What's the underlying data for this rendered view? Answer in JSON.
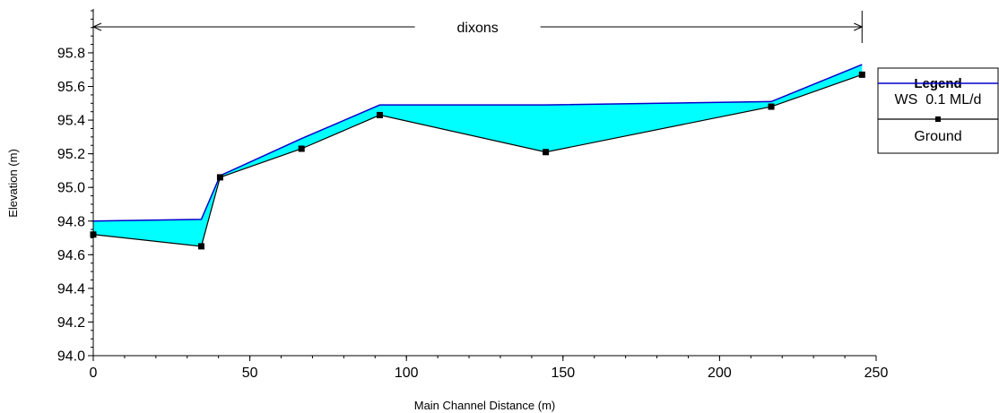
{
  "chart_data": {
    "type": "area",
    "title": "",
    "xlabel": "Main Channel Distance (m)",
    "ylabel": "Elevation (m)",
    "xlim": [
      0,
      250
    ],
    "ylim": [
      94.0,
      96.05
    ],
    "x_ticks": [
      0,
      50,
      100,
      150,
      200,
      250
    ],
    "y_ticks": [
      94.0,
      94.2,
      94.4,
      94.6,
      94.8,
      95.0,
      95.2,
      95.4,
      95.6,
      95.8
    ],
    "x_tick_labels": [
      "0",
      "50",
      "100",
      "150",
      "200",
      "250"
    ],
    "y_tick_labels": [
      "94.0",
      "94.2",
      "94.4",
      "94.6",
      "94.8",
      "95.0",
      "95.2",
      "95.4",
      "95.6",
      "95.8"
    ],
    "grid": false,
    "reach": {
      "label": "dixons",
      "x_start": 0,
      "x_end": 245.5
    },
    "series": [
      {
        "name": "WS  0.1 ML/d",
        "color": "#0000cc",
        "fill_color": "#00ffff",
        "x": [
          0,
          34.5,
          40.5,
          66.5,
          91.5,
          144.5,
          216.5,
          245.5
        ],
        "y": [
          94.8,
          94.81,
          95.07,
          95.29,
          95.49,
          95.49,
          95.51,
          95.73
        ]
      },
      {
        "name": "Ground",
        "color": "#000000",
        "marker": "square",
        "x": [
          0,
          34.5,
          40.5,
          66.5,
          91.5,
          144.5,
          216.5,
          245.5
        ],
        "y": [
          94.72,
          94.65,
          95.06,
          95.23,
          95.43,
          95.21,
          95.48,
          95.67
        ]
      }
    ],
    "legend": {
      "title": "Legend",
      "position": "right",
      "entries": [
        "WS  0.1 ML/d",
        "Ground"
      ]
    }
  }
}
